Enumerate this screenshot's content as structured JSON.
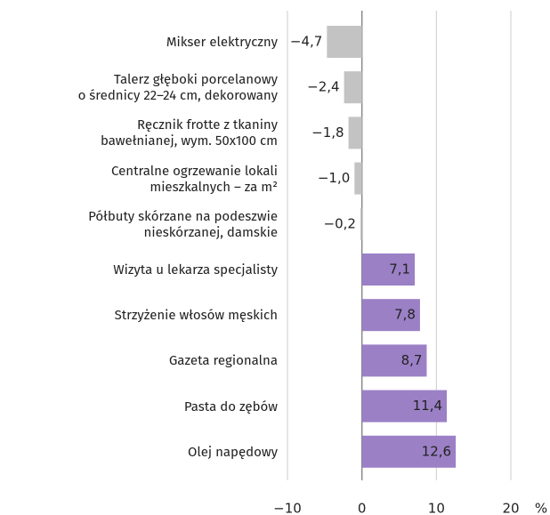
{
  "chart_data": {
    "type": "barh",
    "categories": [
      "Mikser elektryczny",
      "Talerz głęboki porcelanowy\no średnicy 22–24 cm, dekorowany",
      "Ręcznik frotte z tkaniny\nbawełnianej, wym. 50x100 cm",
      "Centralne ogrzewanie lokali\nmieszkalnych – za m²",
      "Półbuty skórzane na podeszwie\nnieskórzanej, damskie",
      "Wizyta u lekarza specjalisty",
      "Strzyżenie włosów męskich",
      "Gazeta regionalna",
      "Pasta do zębów",
      "Olej napędowy"
    ],
    "values": [
      -4.7,
      -2.4,
      -1.8,
      -1.0,
      -0.2,
      7.1,
      7.8,
      8.7,
      11.4,
      12.6
    ],
    "value_labels": [
      "−4,7",
      "−2,4",
      "−1,8",
      "−1,0",
      "−0,2",
      "7,1",
      "7,8",
      "8,7",
      "11,4",
      "12,6"
    ],
    "color_negative": "#c3c3c3",
    "color_positive": "#9b80c6",
    "xlim": [
      -10,
      20
    ],
    "xticks": [
      {
        "value": -10,
        "label": "−10"
      },
      0,
      10,
      20
    ],
    "xlabel": "%",
    "grid": true
  }
}
